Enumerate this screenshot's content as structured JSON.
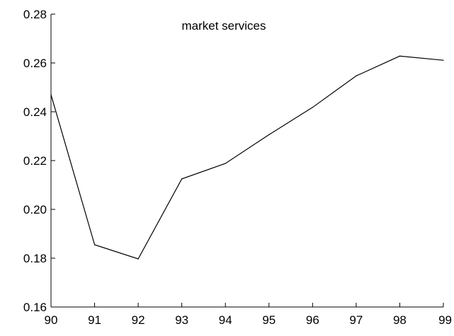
{
  "chart_data": {
    "type": "line",
    "title": "market services",
    "xlabel": "",
    "ylabel": "",
    "x": [
      "90",
      "91",
      "92",
      "93",
      "94",
      "95",
      "96",
      "97",
      "98",
      "99"
    ],
    "series": [
      {
        "values": [
          0.247,
          0.1855,
          0.1797,
          0.2125,
          0.2188,
          0.2306,
          0.2418,
          0.2547,
          0.2628,
          0.2611
        ]
      }
    ],
    "ylim": [
      0.16,
      0.28
    ],
    "yticks": [
      "0.16",
      "0.18",
      "0.20",
      "0.22",
      "0.24",
      "0.26",
      "0.28"
    ],
    "grid": false,
    "line_color": "#000000"
  }
}
